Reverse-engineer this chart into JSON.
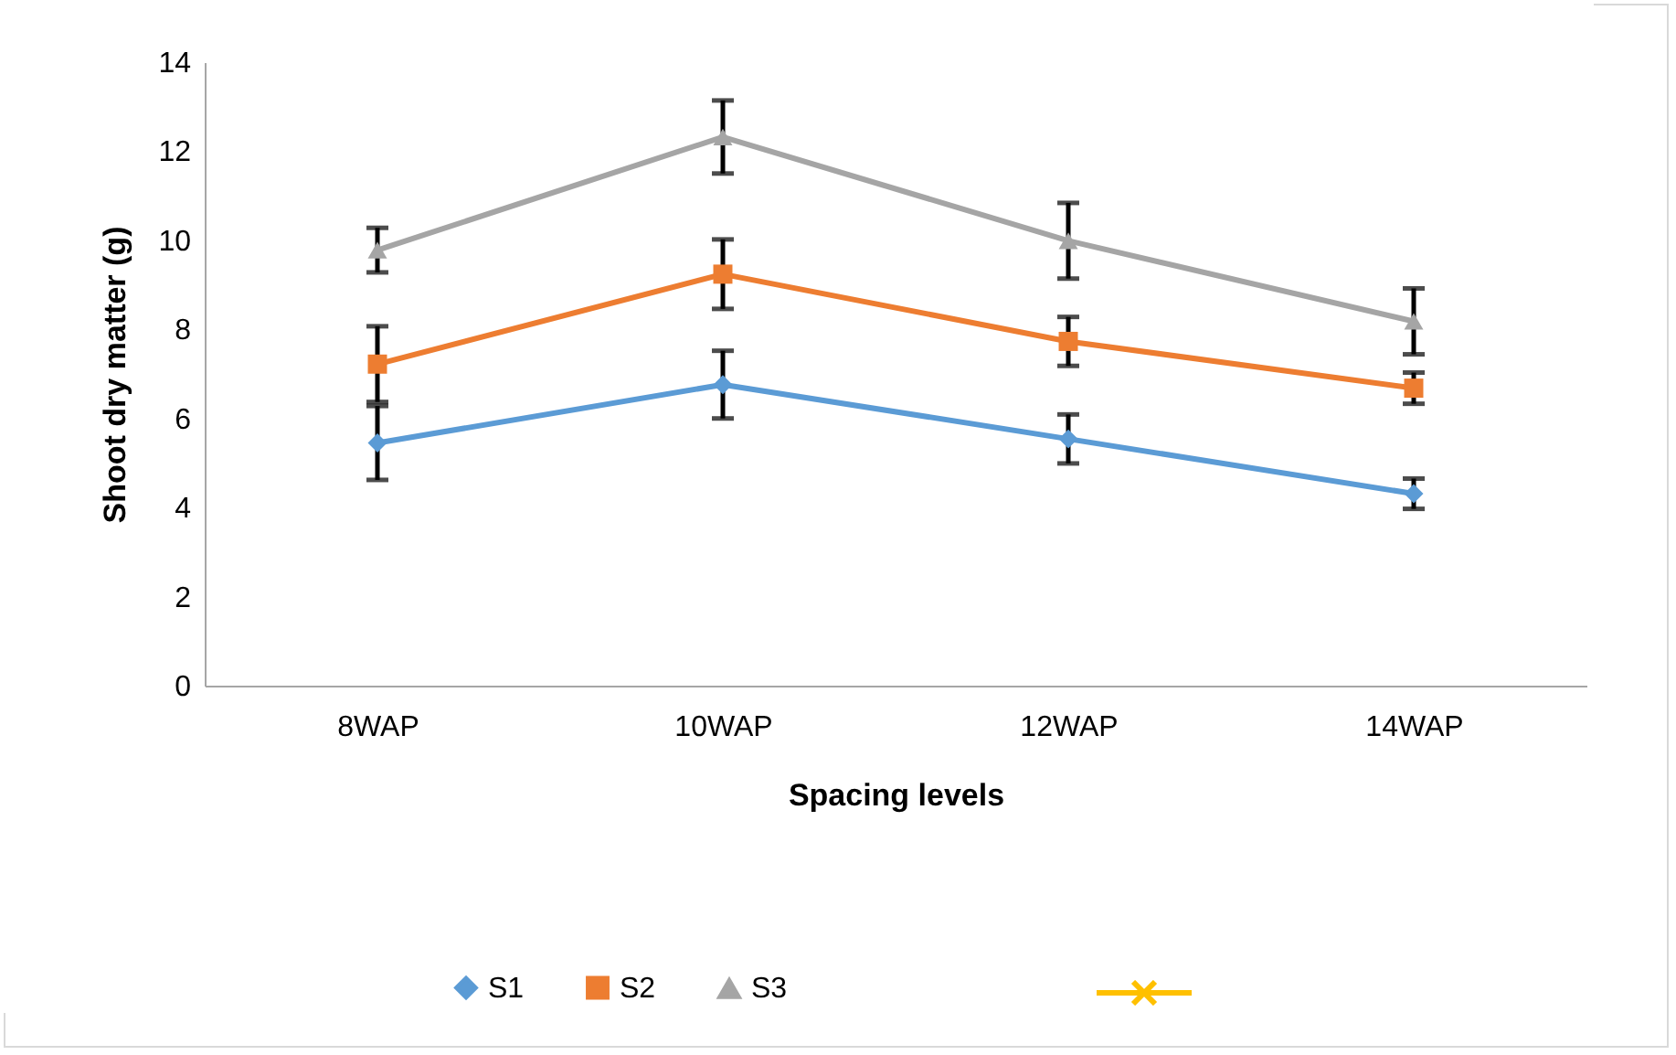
{
  "chart_data": {
    "type": "line",
    "xlabel": "Spacing levels",
    "ylabel": "Shoot dry matter (g)",
    "categories": [
      "8WAP",
      "10WAP",
      "12WAP",
      "14WAP"
    ],
    "ylim": [
      0,
      14
    ],
    "yticks": [
      0,
      2,
      4,
      6,
      8,
      10,
      12,
      14
    ],
    "grid": false,
    "legend": "bottom",
    "series": [
      {
        "name": "S1",
        "color": "#5b9bd5",
        "marker": "diamond",
        "values": [
          5.45,
          6.76,
          5.54,
          4.31
        ],
        "errors": [
          0.83,
          0.76,
          0.55,
          0.34
        ]
      },
      {
        "name": "S2",
        "color": "#ed7d31",
        "marker": "square",
        "values": [
          7.22,
          9.24,
          7.73,
          6.68
        ],
        "errors": [
          0.85,
          0.78,
          0.55,
          0.35
        ]
      },
      {
        "name": "S3",
        "color": "#a5a5a5",
        "marker": "triangle",
        "values": [
          9.78,
          12.32,
          9.99,
          8.18
        ],
        "errors": [
          0.5,
          0.82,
          0.85,
          0.74
        ]
      }
    ]
  }
}
